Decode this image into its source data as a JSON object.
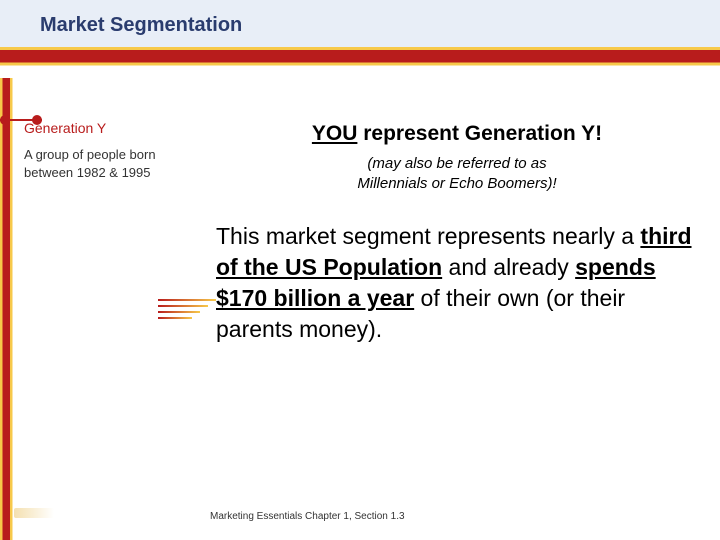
{
  "colors": {
    "accent_red": "#b81c1c",
    "accent_gold": "#f7c94a",
    "header_blue_bg": "#e8eef7",
    "title_blue": "#2a3c6e",
    "text_black": "#000000",
    "text_dark": "#333333",
    "background": "#ffffff"
  },
  "typography": {
    "family": "Verdana",
    "slide_title_size_pt": 20,
    "sidebar_title_size_pt": 14,
    "sidebar_desc_size_pt": 13,
    "headline_size_pt": 21,
    "subnote_size_pt": 15,
    "body_size_pt": 23,
    "footer_size_pt": 10
  },
  "slide": {
    "title": "Market Segmentation"
  },
  "sidebar": {
    "title": "Generation Y",
    "desc": "A group of people born between 1982 & 1995"
  },
  "main": {
    "headline_you": "YOU",
    "headline_rest": " represent Generation Y!",
    "subnote_line1": "(may also be referred to as",
    "subnote_line2": "Millennials or Echo Boomers)!",
    "body_pre1": "This market segment represents nearly a ",
    "body_bold1": "third of the US Population",
    "body_mid1": " and already ",
    "body_bold2": "spends $170 billion a year",
    "body_post1": " of their own (or their parents money)."
  },
  "footer": {
    "text": "Marketing Essentials Chapter 1, Section 1.3"
  }
}
